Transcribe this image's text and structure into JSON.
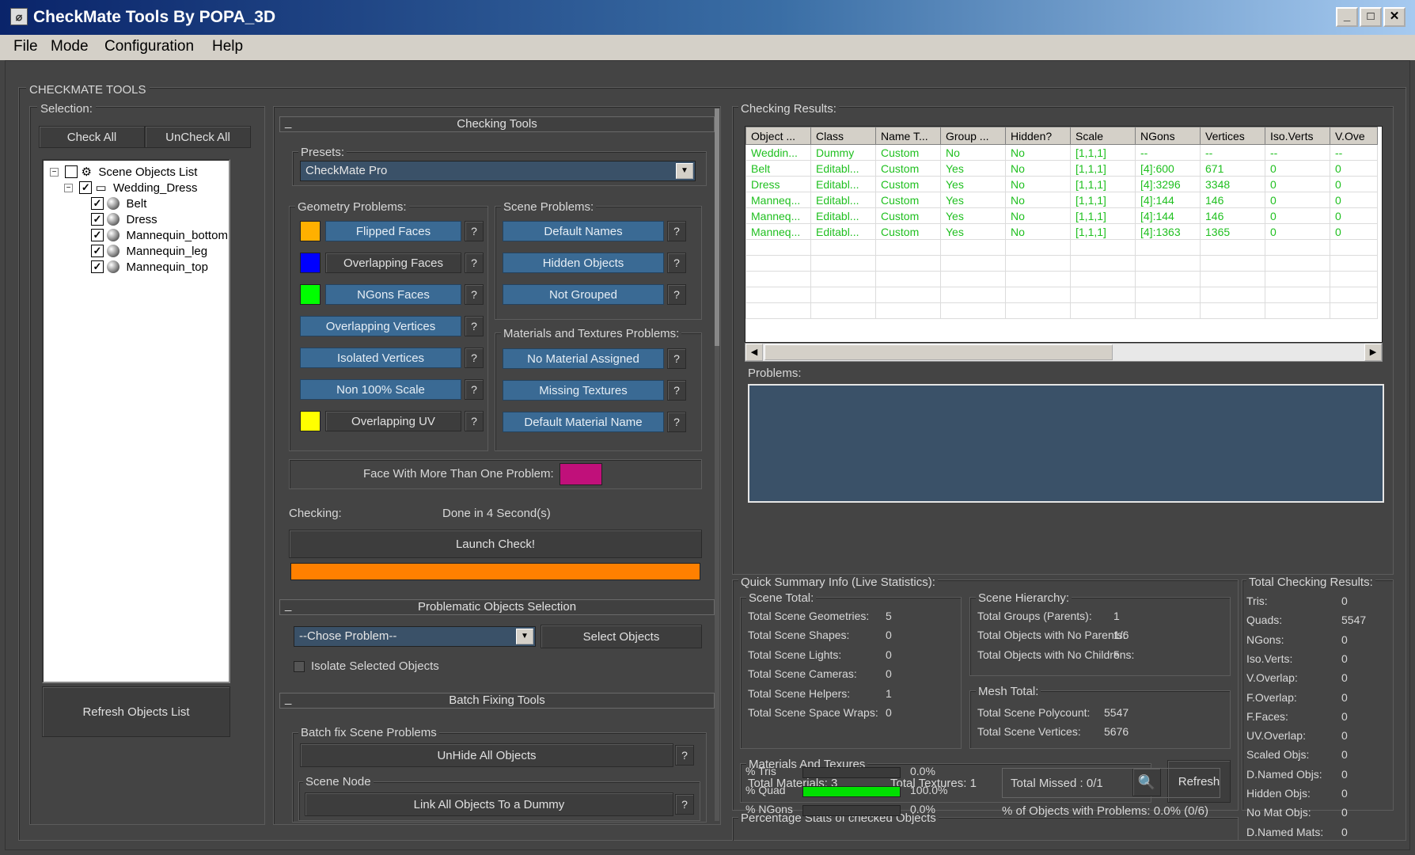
{
  "window": {
    "title": "CheckMate Tools By POPA_3D"
  },
  "menu": {
    "file": "File",
    "mode": "Mode",
    "configuration": "Configuration",
    "help": "Help"
  },
  "panel_title": "CHECKMATE TOOLS",
  "selection": {
    "label": "Selection:",
    "check_all": "Check All",
    "uncheck_all": "UnCheck All",
    "refresh": "Refresh Objects List",
    "root": "Scene Objects List",
    "group": "Wedding_Dress",
    "items": [
      "Belt",
      "Dress",
      "Mannequin_bottom",
      "Mannequin_leg",
      "Mannequin_top"
    ]
  },
  "checking_tools": {
    "title": "Checking Tools",
    "presets_label": "Presets:",
    "preset_value": "CheckMate Pro",
    "geometry_label": "Geometry Problems:",
    "scene_label": "Scene Problems:",
    "materials_label": "Materials and Textures Problems:",
    "geometry": [
      "Flipped Faces",
      "Overlapping Faces",
      "NGons Faces",
      "Overlapping Vertices",
      "Isolated Vertices",
      "Non 100% Scale",
      "Overlapping UV"
    ],
    "geometry_colors": [
      "#ffb000",
      "#0000ff",
      "#00ff00",
      "",
      "",
      "",
      "#ffff00"
    ],
    "scene": [
      "Default Names",
      "Hidden Objects",
      "Not Grouped"
    ],
    "materials": [
      "No Material Assigned",
      "Missing Textures",
      "Default Material Name"
    ],
    "help": "?",
    "face_multi": "Face With More Than One Problem:",
    "face_multi_color": "#c0107a",
    "checking_label": "Checking:",
    "checking_status": "Done in 4 Second(s)",
    "launch": "Launch Check!",
    "progress": 1.0,
    "progress_color": "#ff8000"
  },
  "problematic": {
    "title": "Problematic Objects Selection",
    "combo": "--Chose Problem--",
    "select": "Select Objects",
    "isolate": "Isolate Selected Objects"
  },
  "batch": {
    "title": "Batch Fixing Tools",
    "scene_label": "Batch fix Scene Problems",
    "unhide": "UnHide All Objects",
    "node_label": "Scene Node",
    "link": "Link All Objects To a Dummy"
  },
  "results": {
    "label": "Checking Results:",
    "columns": [
      "Object ...",
      "Class",
      "Name T...",
      "Group ...",
      "Hidden?",
      "Scale",
      "NGons",
      "Vertices",
      "Iso.Verts",
      "V.Ove"
    ],
    "rows": [
      [
        "Weddin...",
        "Dummy",
        "Custom",
        "No",
        "No",
        "[1,1,1]",
        "--",
        "--",
        "--",
        "--"
      ],
      [
        "Belt",
        "Editabl...",
        "Custom",
        "Yes",
        "No",
        "[1,1,1]",
        "[4]:600",
        "671",
        "0",
        "0"
      ],
      [
        "Dress",
        "Editabl...",
        "Custom",
        "Yes",
        "No",
        "[1,1,1]",
        "[4]:3296",
        "3348",
        "0",
        "0"
      ],
      [
        "Manneq...",
        "Editabl...",
        "Custom",
        "Yes",
        "No",
        "[1,1,1]",
        "[4]:144",
        "146",
        "0",
        "0"
      ],
      [
        "Manneq...",
        "Editabl...",
        "Custom",
        "Yes",
        "No",
        "[1,1,1]",
        "[4]:144",
        "146",
        "0",
        "0"
      ],
      [
        "Manneq...",
        "Editabl...",
        "Custom",
        "Yes",
        "No",
        "[1,1,1]",
        "[4]:1363",
        "1365",
        "0",
        "0"
      ]
    ],
    "problems_label": "Problems:"
  },
  "summary": {
    "label": "Quick Summary Info  (Live Statistics):",
    "scene_total": {
      "label": "Scene Total:",
      "rows": [
        [
          "Total Scene Geometries:",
          "5"
        ],
        [
          "Total Scene Shapes:",
          "0"
        ],
        [
          "Total Scene Lights:",
          "0"
        ],
        [
          "Total Scene Cameras:",
          "0"
        ],
        [
          "Total Scene Helpers:",
          "1"
        ],
        [
          "Total Scene Space Wraps:",
          "0"
        ]
      ]
    },
    "hierarchy": {
      "label": "Scene Hierarchy:",
      "rows": [
        [
          "Total Groups (Parents):",
          "1"
        ],
        [
          "Total Objects with No Parents:",
          "1/6"
        ],
        [
          "Total Objects with No Childrens:",
          "5"
        ]
      ]
    },
    "mesh": {
      "label": "Mesh Total:",
      "rows": [
        [
          "Total Scene Polycount:",
          "5547"
        ],
        [
          "Total Scene Vertices:",
          "5676"
        ]
      ]
    },
    "materials": {
      "label": "Materials And Texures",
      "total_materials": "Total Materials: 3",
      "total_textures": "Total Textures: 1",
      "total_missed": "Total Missed : 0/1",
      "refresh": "Refresh"
    },
    "percent": {
      "label": "Percentage Stats of checked Objects",
      "rows": [
        {
          "name": "% Tris",
          "value": "0.0%",
          "fraction": 0.0
        },
        {
          "name": "% Quad",
          "value": "100.0%",
          "fraction": 1.0
        },
        {
          "name": "% NGons",
          "value": "0.0%",
          "fraction": 0.0
        }
      ],
      "objects_problems": "% of Objects with Problems: 0.0% (0/6)"
    }
  },
  "totals": {
    "label": "Total Checking Results:",
    "rows": [
      [
        "Tris:",
        "0"
      ],
      [
        "Quads:",
        "5547"
      ],
      [
        "NGons:",
        "0"
      ],
      [
        "Iso.Verts:",
        "0"
      ],
      [
        "V.Overlap:",
        "0"
      ],
      [
        "F.Overlap:",
        "0"
      ],
      [
        "F.Faces:",
        "0"
      ],
      [
        "UV.Overlap:",
        "0"
      ],
      [
        "Scaled Objs:",
        "0"
      ],
      [
        "D.Named Objs:",
        "0"
      ],
      [
        "Hidden Objs:",
        "0"
      ],
      [
        "No Mat Objs:",
        "0"
      ],
      [
        "D.Named Mats:",
        "0"
      ]
    ]
  }
}
